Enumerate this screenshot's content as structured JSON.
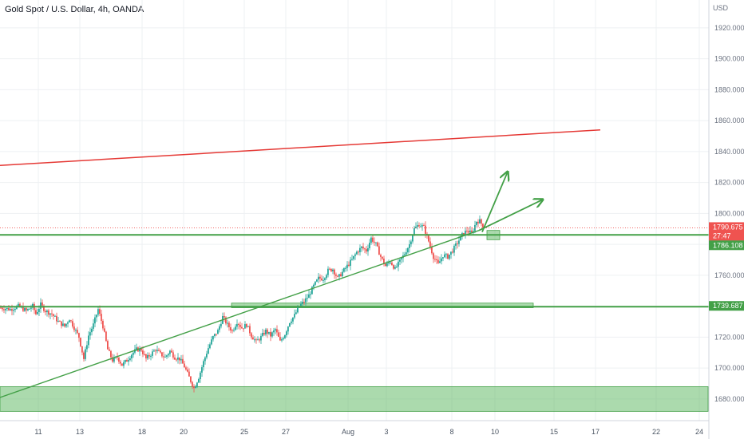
{
  "title": "Gold Spot / U.S. Dollar, 4h, OANDA",
  "colors": {
    "up": "#26a69a",
    "down": "#ef5350",
    "green_line": "#43a047",
    "red_line": "#e53935",
    "zone": "#66bb6a",
    "grid": "#eef0f3"
  },
  "chart_data": {
    "type": "candlestick",
    "y_unit": "USD",
    "ylim": [
      1666,
      1938
    ],
    "y_ticks": [
      "1680.000",
      "1700.000",
      "1720.000",
      "1740.000",
      "1760.000",
      "1780.000",
      "1800.000",
      "1820.000",
      "1840.000",
      "1860.000",
      "1880.000",
      "1900.000",
      "1920.000"
    ],
    "x_ticks": [
      "11",
      "13",
      "18",
      "20",
      "25",
      "27",
      "Aug",
      "3",
      "8",
      "10",
      "15",
      "17",
      "22",
      "24"
    ],
    "price_tags": [
      {
        "label": "1790.675",
        "color": "#ef5350"
      },
      {
        "label": "27:47",
        "color": "#ef5350"
      },
      {
        "label": "1786.108",
        "color": "#43a047"
      },
      {
        "label": "1739.687",
        "color": "#43a047"
      }
    ],
    "close_path": [
      [
        0,
        1739
      ],
      [
        6,
        1738
      ],
      [
        11,
        1740
      ],
      [
        16,
        1737
      ],
      [
        20,
        1740
      ],
      [
        22,
        1735
      ],
      [
        25,
        1741
      ],
      [
        28,
        1737
      ],
      [
        32,
        1735
      ],
      [
        36,
        1730
      ],
      [
        40,
        1727
      ],
      [
        43,
        1732
      ],
      [
        46,
        1726
      ],
      [
        49,
        1720
      ],
      [
        52,
        1706
      ],
      [
        55,
        1721
      ],
      [
        58,
        1728
      ],
      [
        61,
        1738
      ],
      [
        64,
        1727
      ],
      [
        67,
        1712
      ],
      [
        70,
        1705
      ],
      [
        73,
        1707
      ],
      [
        76,
        1702
      ],
      [
        79,
        1705
      ],
      [
        82,
        1709
      ],
      [
        85,
        1712
      ],
      [
        88,
        1712
      ],
      [
        91,
        1706
      ],
      [
        94,
        1709
      ],
      [
        97,
        1712
      ],
      [
        100,
        1709
      ],
      [
        103,
        1707
      ],
      [
        106,
        1711
      ],
      [
        109,
        1707
      ],
      [
        112,
        1706
      ],
      [
        115,
        1701
      ],
      [
        118,
        1694
      ],
      [
        121,
        1687
      ],
      [
        124,
        1694
      ],
      [
        127,
        1704
      ],
      [
        130,
        1713
      ],
      [
        133,
        1720
      ],
      [
        136,
        1724
      ],
      [
        139,
        1733
      ],
      [
        142,
        1728
      ],
      [
        145,
        1724
      ],
      [
        148,
        1730
      ],
      [
        151,
        1726
      ],
      [
        154,
        1728
      ],
      [
        157,
        1721
      ],
      [
        160,
        1717
      ],
      [
        163,
        1720
      ],
      [
        166,
        1724
      ],
      [
        169,
        1721
      ],
      [
        172,
        1725
      ],
      [
        175,
        1717
      ],
      [
        178,
        1722
      ],
      [
        181,
        1730
      ],
      [
        184,
        1734
      ],
      [
        187,
        1740
      ],
      [
        190,
        1743
      ],
      [
        193,
        1747
      ],
      [
        196,
        1753
      ],
      [
        199,
        1758
      ],
      [
        202,
        1758
      ],
      [
        205,
        1763
      ],
      [
        208,
        1764
      ],
      [
        211,
        1758
      ],
      [
        214,
        1762
      ],
      [
        217,
        1766
      ],
      [
        220,
        1770
      ],
      [
        223,
        1775
      ],
      [
        226,
        1778
      ],
      [
        229,
        1776
      ],
      [
        232,
        1784
      ],
      [
        235,
        1780
      ],
      [
        238,
        1772
      ],
      [
        241,
        1766
      ],
      [
        244,
        1769
      ],
      [
        247,
        1764
      ],
      [
        250,
        1769
      ],
      [
        253,
        1774
      ],
      [
        256,
        1780
      ],
      [
        259,
        1790
      ],
      [
        262,
        1793
      ],
      [
        265,
        1791
      ],
      [
        268,
        1782
      ],
      [
        271,
        1772
      ],
      [
        274,
        1767
      ],
      [
        277,
        1773
      ],
      [
        280,
        1772
      ],
      [
        283,
        1776
      ],
      [
        286,
        1781
      ],
      [
        289,
        1786
      ],
      [
        292,
        1789
      ],
      [
        295,
        1787
      ],
      [
        298,
        1795
      ],
      [
        300,
        1795
      ],
      [
        302,
        1792
      ]
    ],
    "annotations": [
      {
        "type": "horizontal_line",
        "y": 1786.108,
        "color": "#43a047"
      },
      {
        "type": "horizontal_line",
        "y": 1739.687,
        "color": "#43a047"
      },
      {
        "type": "trendline",
        "from": [
          0,
          1831
        ],
        "to": [
          376,
          1854
        ],
        "color": "#e53935"
      },
      {
        "type": "trendline",
        "from": [
          0,
          1681
        ],
        "to": [
          300,
          1789
        ],
        "color": "#43a047"
      },
      {
        "type": "arrow",
        "from": [
          300,
          1789
        ],
        "to": [
          340,
          1809
        ],
        "color": "#43a047"
      },
      {
        "type": "arrow",
        "from": [
          302,
          1788
        ],
        "to": [
          318,
          1827
        ],
        "color": "#43a047"
      },
      {
        "type": "zone",
        "y": [
          1672,
          1688
        ],
        "color": "#66bb6a"
      },
      {
        "type": "zone",
        "y": [
          1739,
          1742
        ],
        "color": "#66bb6a"
      },
      {
        "type": "zone",
        "y": [
          1783,
          1789
        ],
        "color": "#66bb6a"
      }
    ]
  }
}
